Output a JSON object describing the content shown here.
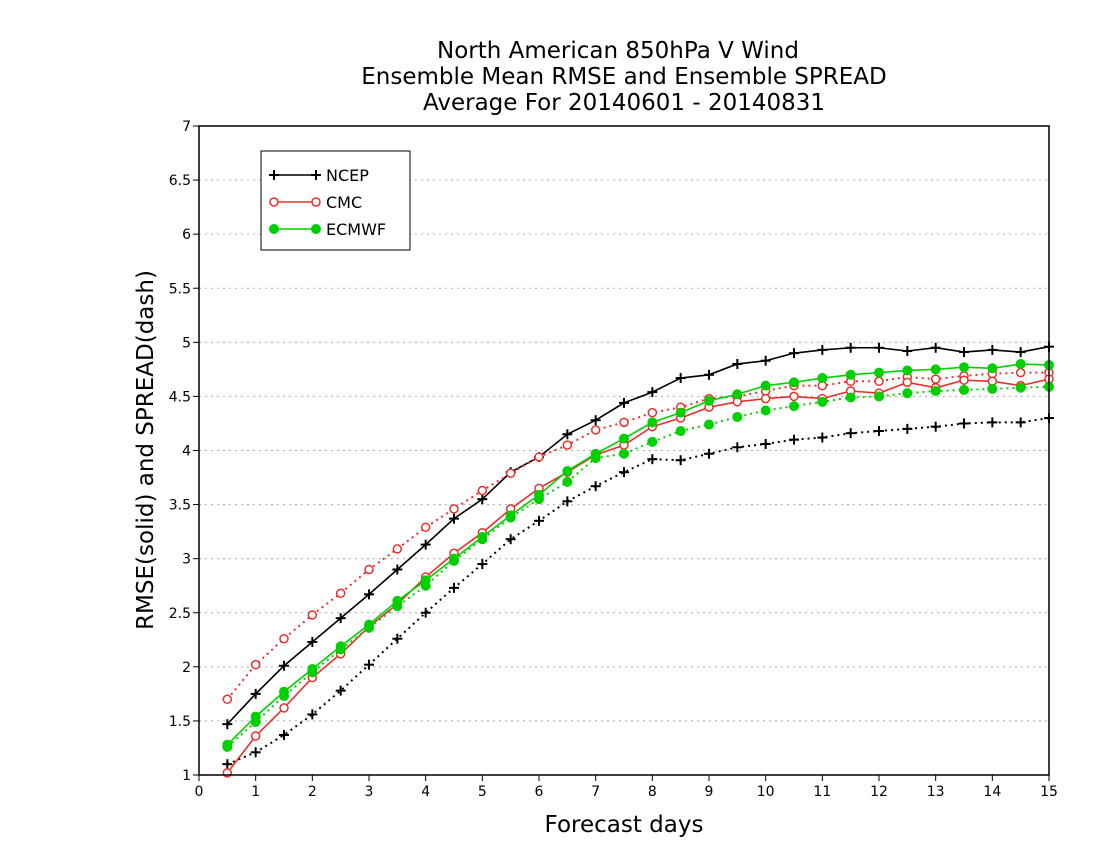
{
  "chart_data": {
    "type": "line",
    "title_lines": [
      "North American 850hPa V Wind",
      "Ensemble Mean RMSE and Ensemble SPREAD",
      "Average For 20140601 - 20140831"
    ],
    "xlabel": "Forecast days",
    "ylabel": "RMSE(solid) and SPREAD(dash)",
    "xlim": [
      0,
      15
    ],
    "ylim": [
      1,
      7
    ],
    "x_ticks": [
      "0",
      "1",
      "2",
      "3",
      "4",
      "5",
      "6",
      "7",
      "8",
      "9",
      "10",
      "11",
      "12",
      "13",
      "14",
      "15"
    ],
    "y_ticks": [
      "1",
      "1.5",
      "2",
      "2.5",
      "3",
      "3.5",
      "4",
      "4.5",
      "5",
      "5.5",
      "6",
      "6.5",
      "7"
    ],
    "grid": true,
    "legend_position": "top-left",
    "x": [
      0.5,
      1,
      1.5,
      2,
      2.5,
      3,
      3.5,
      4,
      4.5,
      5,
      5.5,
      6,
      6.5,
      7,
      7.5,
      8,
      8.5,
      9,
      9.5,
      10,
      10.5,
      11,
      11.5,
      12,
      12.5,
      13,
      13.5,
      14,
      14.5,
      15
    ],
    "series": [
      {
        "name": "NCEP",
        "color": "#000000",
        "marker": "plus",
        "rmse": [
          1.47,
          1.75,
          2.01,
          2.23,
          2.45,
          2.67,
          2.9,
          3.13,
          3.37,
          3.55,
          3.8,
          3.94,
          4.15,
          4.28,
          4.44,
          4.54,
          4.67,
          4.7,
          4.8,
          4.83,
          4.9,
          4.93,
          4.95,
          4.95,
          4.92,
          4.95,
          4.91,
          4.93,
          4.91,
          4.96
        ],
        "spread": [
          1.1,
          1.21,
          1.37,
          1.56,
          1.78,
          2.02,
          2.26,
          2.5,
          2.73,
          2.95,
          3.18,
          3.35,
          3.53,
          3.67,
          3.8,
          3.92,
          3.91,
          3.97,
          4.03,
          4.06,
          4.1,
          4.12,
          4.16,
          4.18,
          4.2,
          4.22,
          4.25,
          4.26,
          4.26,
          4.3
        ]
      },
      {
        "name": "CMC",
        "color": "#e8302c",
        "marker": "open-circle",
        "rmse": [
          1.02,
          1.36,
          1.62,
          1.9,
          2.12,
          2.37,
          2.58,
          2.83,
          3.05,
          3.24,
          3.46,
          3.65,
          3.8,
          3.96,
          4.05,
          4.22,
          4.3,
          4.4,
          4.45,
          4.48,
          4.5,
          4.48,
          4.55,
          4.53,
          4.63,
          4.58,
          4.65,
          4.64,
          4.6,
          4.66
        ],
        "spread": [
          1.7,
          2.02,
          2.26,
          2.48,
          2.68,
          2.9,
          3.09,
          3.29,
          3.46,
          3.63,
          3.79,
          3.94,
          4.05,
          4.19,
          4.26,
          4.35,
          4.4,
          4.48,
          4.5,
          4.55,
          4.6,
          4.6,
          4.64,
          4.64,
          4.68,
          4.66,
          4.69,
          4.71,
          4.72,
          4.72
        ]
      },
      {
        "name": "ECMWF",
        "color": "#00d000",
        "marker": "filled-circle",
        "rmse": [
          1.28,
          1.54,
          1.77,
          1.98,
          2.19,
          2.39,
          2.61,
          2.8,
          3.0,
          3.2,
          3.4,
          3.59,
          3.81,
          3.97,
          4.11,
          4.26,
          4.35,
          4.46,
          4.52,
          4.6,
          4.63,
          4.67,
          4.7,
          4.72,
          4.74,
          4.75,
          4.77,
          4.76,
          4.8,
          4.79
        ],
        "spread": [
          1.26,
          1.49,
          1.73,
          1.95,
          2.16,
          2.36,
          2.56,
          2.75,
          2.98,
          3.18,
          3.38,
          3.55,
          3.71,
          3.93,
          3.97,
          4.08,
          4.18,
          4.24,
          4.31,
          4.37,
          4.41,
          4.45,
          4.49,
          4.5,
          4.53,
          4.55,
          4.56,
          4.57,
          4.58,
          4.59
        ]
      }
    ]
  }
}
